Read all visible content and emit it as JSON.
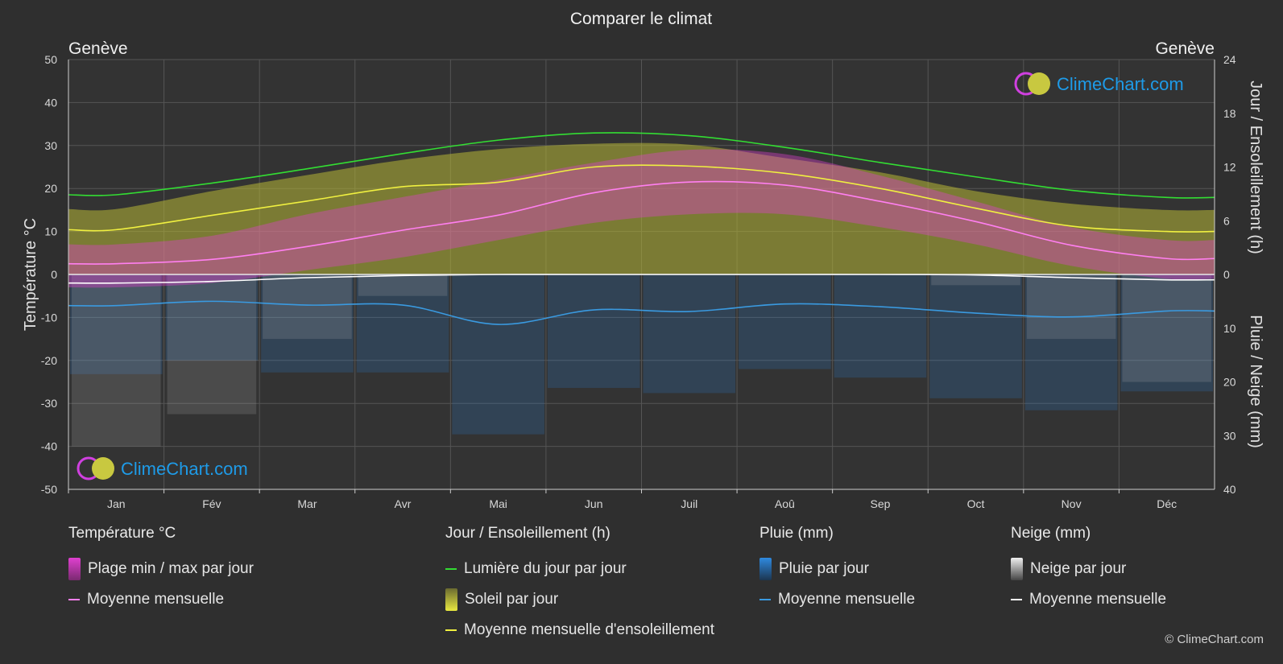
{
  "title": "Comparer le climat",
  "location_left": "Genève",
  "location_right": "Genève",
  "brand": "ClimeChart.com",
  "copyright": "© ClimeChart.com",
  "colors": {
    "background": "#2f2f2f",
    "temp_range": "#e040d0",
    "temp_mean": "#ff7ff0",
    "daylight": "#33dd33",
    "sunshine_fill": "#b7b735",
    "sunshine_mean": "#f0f040",
    "rain": "#2f7fd0",
    "rain_mean": "#3a9ae0",
    "snow": "#bbbbbb",
    "snow_mean": "#ffffff",
    "brand": "#1e9be8"
  },
  "chart_data": {
    "type": "line",
    "categories": [
      "Jan",
      "Fév",
      "Mar",
      "Avr",
      "Mai",
      "Jun",
      "Juil",
      "Aoû",
      "Sep",
      "Oct",
      "Nov",
      "Déc"
    ],
    "left_axis": {
      "label": "Température °C",
      "ticks": [
        50,
        40,
        30,
        20,
        10,
        0,
        -10,
        -20,
        -30,
        -40,
        -50
      ],
      "range": [
        -50,
        50
      ]
    },
    "right_axis_top": {
      "label": "Jour / Ensoleillement (h)",
      "ticks": [
        24,
        18,
        12,
        6,
        0
      ],
      "range": [
        0,
        24
      ]
    },
    "right_axis_bottom": {
      "label": "Pluie / Neige (mm)",
      "ticks": [
        0,
        10,
        20,
        30,
        40
      ],
      "range": [
        0,
        40
      ]
    },
    "series": [
      {
        "name": "Lumière du jour par jour",
        "unit": "h",
        "values": [
          8.9,
          10.2,
          11.8,
          13.5,
          15.0,
          15.8,
          15.5,
          14.2,
          12.5,
          10.9,
          9.4,
          8.6
        ]
      },
      {
        "name": "Moyenne mensuelle d'ensoleillement",
        "unit": "h",
        "values": [
          5.0,
          6.6,
          8.2,
          9.8,
          10.3,
          12.0,
          12.1,
          11.3,
          9.6,
          7.4,
          5.4,
          4.8
        ]
      },
      {
        "name": "Soleil par jour (plage haute)",
        "unit": "h",
        "values": [
          7.3,
          9.3,
          11.1,
          12.8,
          14.0,
          14.6,
          14.5,
          13.0,
          11.4,
          9.3,
          7.9,
          7.2
        ]
      },
      {
        "name": "Température moyenne mensuelle",
        "unit": "°C",
        "values": [
          2.5,
          3.5,
          6.5,
          10.3,
          13.8,
          19.0,
          21.5,
          20.8,
          17.0,
          12.3,
          6.8,
          3.7
        ]
      },
      {
        "name": "Température max par jour",
        "unit": "°C",
        "values": [
          7,
          9,
          14,
          18,
          22,
          26,
          29,
          28,
          23,
          17,
          11,
          8
        ]
      },
      {
        "name": "Température min par jour",
        "unit": "°C",
        "values": [
          -3,
          -2,
          1,
          4,
          8,
          12,
          14,
          14,
          11,
          7,
          2,
          -1
        ]
      },
      {
        "name": "Pluie moyenne mensuelle",
        "unit": "mm",
        "values": [
          5.8,
          5.0,
          5.7,
          5.7,
          9.3,
          6.6,
          6.9,
          5.5,
          6.0,
          7.2,
          7.9,
          6.8
        ]
      },
      {
        "name": "Neige moyenne mensuelle",
        "unit": "mm",
        "values": [
          1.6,
          1.3,
          0.6,
          0.2,
          0.0,
          0.0,
          0.0,
          0.0,
          0.0,
          0.1,
          0.6,
          1.0
        ]
      }
    ]
  },
  "legend": {
    "temperature": {
      "title": "Température °C",
      "items": [
        "Plage min / max par jour",
        "Moyenne mensuelle"
      ]
    },
    "sun": {
      "title": "Jour / Ensoleillement (h)",
      "items": [
        "Lumière du jour par jour",
        "Soleil par jour",
        "Moyenne mensuelle d'ensoleillement"
      ]
    },
    "rain": {
      "title": "Pluie (mm)",
      "items": [
        "Pluie par jour",
        "Moyenne mensuelle"
      ]
    },
    "snow": {
      "title": "Neige (mm)",
      "items": [
        "Neige par jour",
        "Moyenne mensuelle"
      ]
    }
  }
}
